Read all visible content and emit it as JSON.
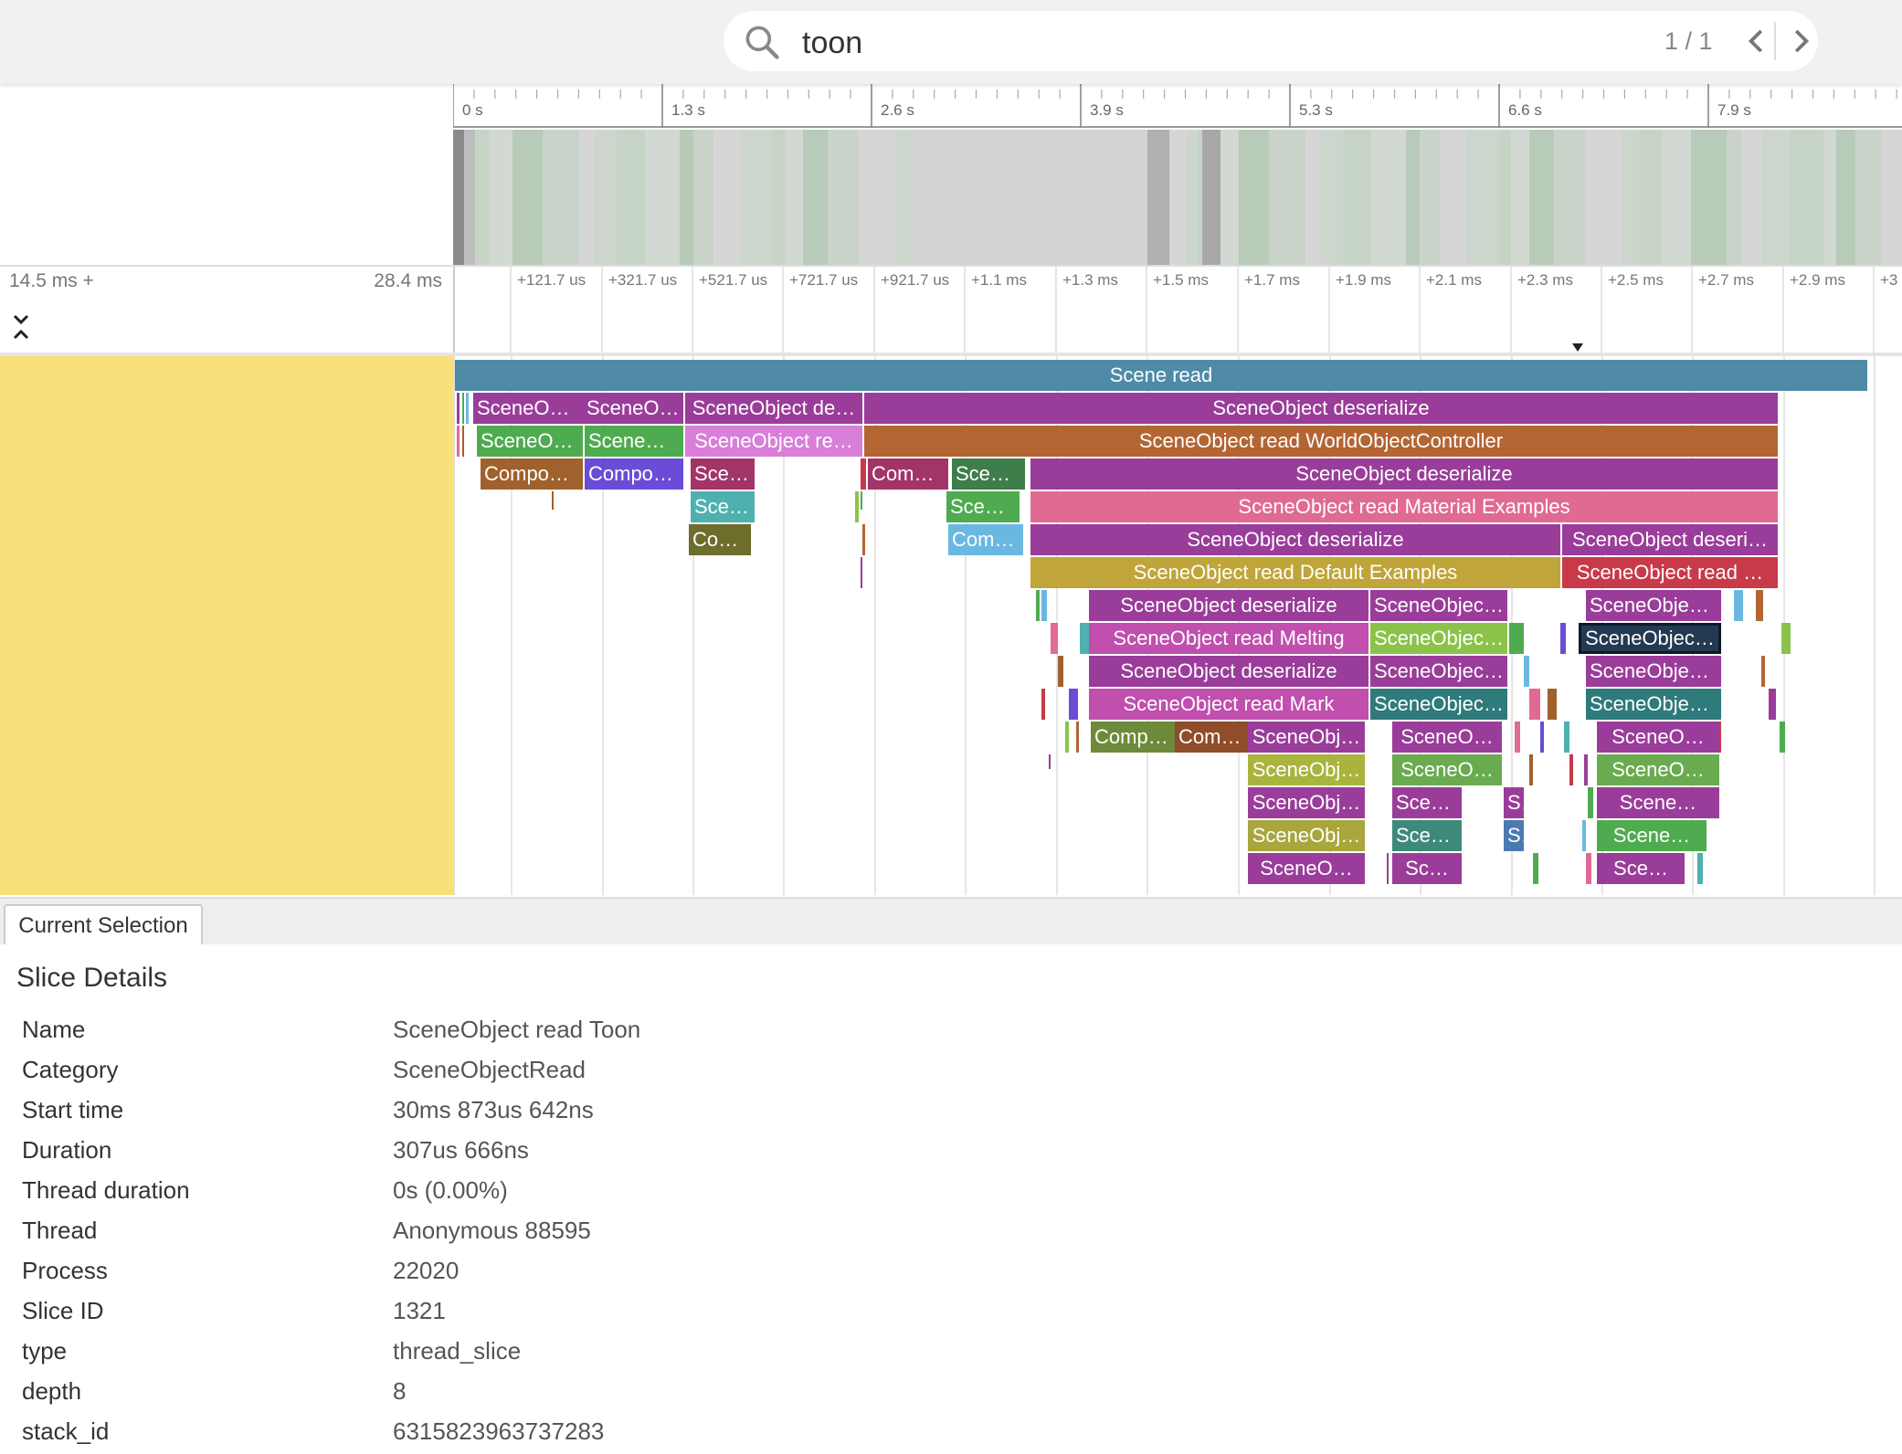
{
  "search": {
    "query": "toon",
    "count": "1 / 1"
  },
  "overview": {
    "ticks": [
      "0 s",
      "1.3 s",
      "2.6 s",
      "3.9 s",
      "5.3 s",
      "6.6 s",
      "7.9 s"
    ]
  },
  "timeline": {
    "offset_label": "14.5 ms +",
    "span_label": "28.4 ms",
    "ticks": [
      "+121.7 us",
      "+321.7 us",
      "+521.7 us",
      "+721.7 us",
      "+921.7 us",
      "+1.1 ms",
      "+1.3 ms",
      "+1.5 ms",
      "+1.7 ms",
      "+1.9 ms",
      "+2.1 ms",
      "+2.3 ms",
      "+2.5 ms",
      "+2.7 ms",
      "+2.9 ms",
      "+3"
    ]
  },
  "slices": [
    "Scene read",
    "SceneObj…",
    "SceneOb…",
    "SceneObject de…",
    "SceneObject deserialize",
    "SceneOb…",
    "SceneOb…",
    "SceneObject re…",
    "SceneObject read WorldObjectController",
    "Compone…",
    "Compon…",
    "Scen…",
    "Comp…",
    "Scen…",
    "SceneObject deserialize",
    "Scen…",
    "Scen…",
    "SceneObject read Material Examples",
    "Comp…",
    "Comp…",
    "SceneObject deserialize",
    "SceneObject deseri…",
    "SceneObject read Default Examples",
    "SceneObject read …",
    "SceneObject deserialize",
    "SceneObject …",
    "SceneObjec…",
    "SceneObject read Melting",
    "SceneObject …",
    "SceneObjec…",
    "SceneObject deserialize",
    "SceneObject …",
    "SceneObjec…",
    "SceneObject read Mark",
    "SceneObject …",
    "SceneObjec…",
    "Compo…",
    "Comp…",
    "SceneObj…",
    "SceneO…",
    "SceneO…",
    "SceneObj…",
    "SceneO…",
    "SceneO…",
    "SceneObj…",
    "Scen…",
    "S",
    "Scene…",
    "SceneObj…",
    "Scen…",
    "S",
    "Scene…",
    "SceneO…",
    "Sc…",
    "Sce…"
  ],
  "tab": {
    "label": "Current Selection"
  },
  "details": {
    "title": "Slice Details",
    "rows": [
      {
        "key": "Name",
        "value": "SceneObject read Toon"
      },
      {
        "key": "Category",
        "value": "SceneObjectRead"
      },
      {
        "key": "Start time",
        "value": "30ms 873us 642ns"
      },
      {
        "key": "Duration",
        "value": "307us 666ns"
      },
      {
        "key": "Thread duration",
        "value": "0s (0.00%)"
      },
      {
        "key": "Thread",
        "value": "Anonymous 88595"
      },
      {
        "key": "Process",
        "value": "22020"
      },
      {
        "key": "Slice ID",
        "value": "1321"
      },
      {
        "key": "type",
        "value": "thread_slice"
      },
      {
        "key": "depth",
        "value": "8"
      },
      {
        "key": "stack_id",
        "value": "6315823963737283"
      }
    ]
  }
}
